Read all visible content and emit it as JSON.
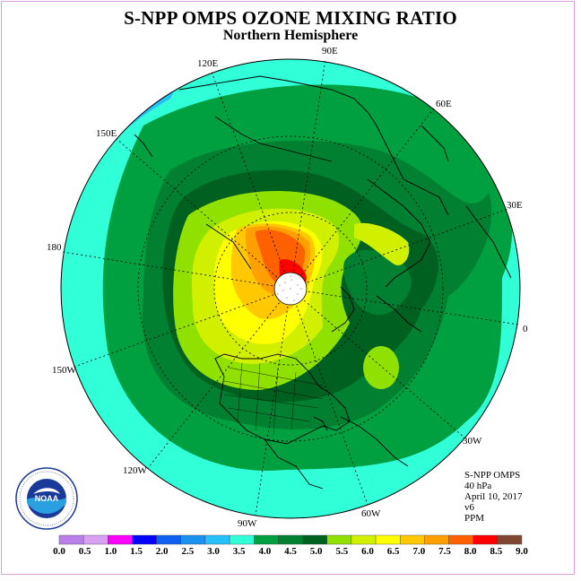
{
  "title": "S-NPP OMPS OZONE MIXING RATIO",
  "subtitle": "Northern Hemisphere",
  "longitude_labels": [
    "90E",
    "60E",
    "30E",
    "0",
    "30W",
    "60W",
    "90W",
    "120W",
    "150W",
    "180",
    "150E",
    "120E"
  ],
  "info": {
    "instrument": "S-NPP OMPS",
    "level": "40 hPa",
    "date": "April 10, 2017",
    "version": "v6",
    "units": "PPM"
  },
  "colorbar": {
    "ticks": [
      "0.0",
      "0.5",
      "1.0",
      "1.5",
      "2.0",
      "2.5",
      "3.0",
      "3.5",
      "4.0",
      "4.5",
      "5.0",
      "5.5",
      "6.0",
      "6.5",
      "7.0",
      "7.5",
      "8.0",
      "8.5",
      "9.0"
    ],
    "colors": [
      "#b880e8",
      "#d8a0f0",
      "#ff00ff",
      "#0000ff",
      "#1060f0",
      "#1a90f0",
      "#28c0f8",
      "#30ffd8",
      "#00a040",
      "#008030",
      "#006020",
      "#90e000",
      "#d0f000",
      "#ffff00",
      "#ffc800",
      "#ffa000",
      "#ff6000",
      "#ff0000",
      "#804830"
    ]
  },
  "map_colors": {
    "land": "#000000",
    "ocean_mid": "#30ffd8",
    "low": "#28c0f8",
    "band_45": "#008030",
    "band_50": "#006020",
    "band_55": "#90e000",
    "band_60": "#d0f000",
    "band_65": "#ffff00",
    "band_70": "#ffc800",
    "band_75": "#ffa000",
    "band_80": "#ff6000",
    "band_85": "#ff0000"
  }
}
